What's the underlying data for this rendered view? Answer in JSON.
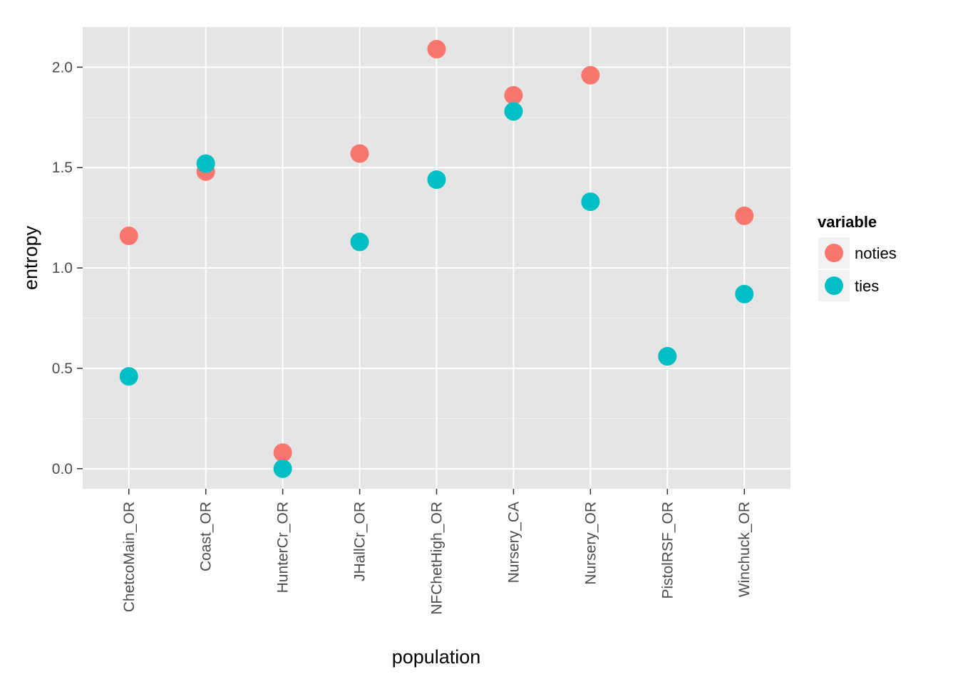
{
  "chart_data": {
    "type": "scatter",
    "title": "",
    "xlabel": "population",
    "ylabel": "entropy",
    "categories": [
      "ChetcoMain_OR",
      "Coast_OR",
      "HunterCr_OR",
      "JHallCr_OR",
      "NFChetHigh_OR",
      "Nursery_CA",
      "Nursery_OR",
      "PistolRSF_OR",
      "Winchuck_OR"
    ],
    "y_ticks": [
      "0.0",
      "0.5",
      "1.0",
      "1.5",
      "2.0"
    ],
    "ylim": [
      -0.1,
      2.2
    ],
    "grid": true,
    "legend": {
      "title": "variable",
      "placement": "right"
    },
    "series": [
      {
        "name": "noties",
        "color": "#F8766D",
        "values": [
          1.16,
          1.48,
          0.08,
          1.57,
          2.09,
          1.86,
          1.96,
          0.56,
          1.26
        ]
      },
      {
        "name": "ties",
        "color": "#00BFC4",
        "values": [
          0.46,
          1.52,
          0.0,
          1.13,
          1.44,
          1.78,
          1.33,
          0.56,
          0.87
        ]
      }
    ]
  }
}
